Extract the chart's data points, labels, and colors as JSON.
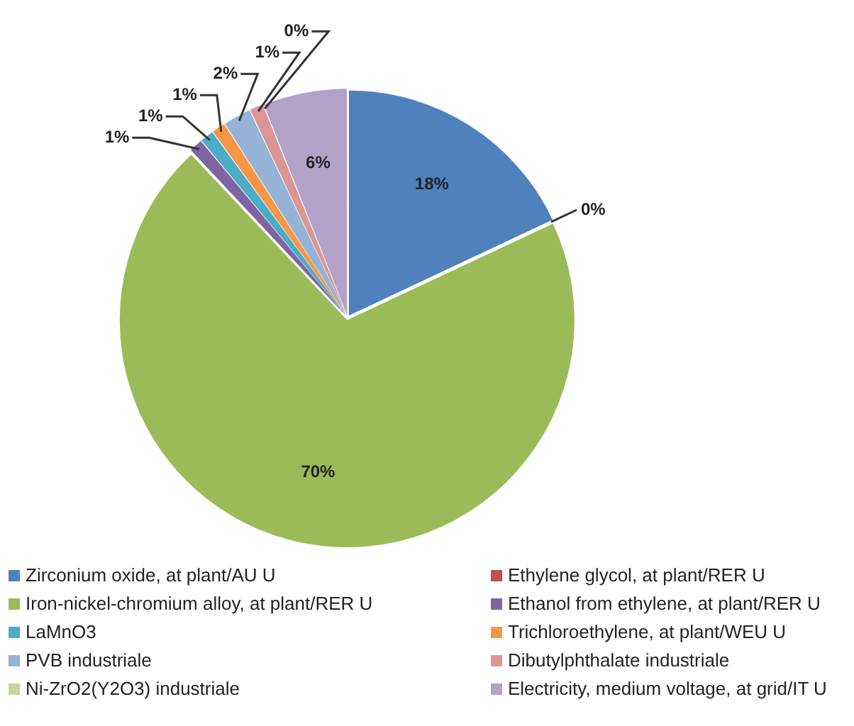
{
  "chart_data": {
    "type": "pie",
    "categories": [
      "Zirconium oxide, at plant/AU U",
      "Ethylene glycol, at plant/RER U",
      "Iron-nickel-chromium alloy, at plant/RER U",
      "Ethanol from ethylene, at plant/RER U",
      "LaMnO3",
      "Trichloroethylene, at plant/WEU U",
      "PVB industriale",
      "Dibutylphthalate industriale",
      "Ni-ZrO2(Y2O3) industriale",
      "Electricity, medium voltage, at grid/IT U"
    ],
    "values": [
      18,
      0,
      70,
      1,
      1,
      1,
      2,
      1,
      0,
      6
    ],
    "value_labels": [
      "18%",
      "0%",
      "70%",
      "1%",
      "1%",
      "1%",
      "2%",
      "1%",
      "0%",
      "6%"
    ],
    "colors": [
      "#4f81bd",
      "#c0504d",
      "#9bbb59",
      "#8064a2",
      "#4bacc6",
      "#f79646",
      "#95b3d7",
      "#d99694",
      "#c3d69b",
      "#b3a2c7"
    ],
    "legend": "bottom"
  }
}
